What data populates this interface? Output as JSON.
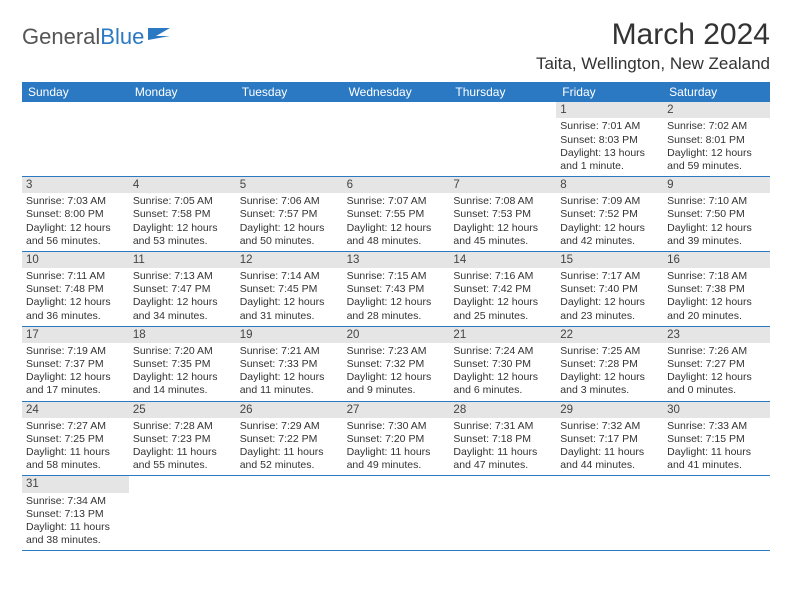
{
  "logo": {
    "part1": "General",
    "part2": "Blue"
  },
  "title": "March 2024",
  "location": "Taita, Wellington, New Zealand",
  "dayNames": [
    "Sunday",
    "Monday",
    "Tuesday",
    "Wednesday",
    "Thursday",
    "Friday",
    "Saturday"
  ],
  "colors": {
    "headerBg": "#2b79c2",
    "headerText": "#ffffff",
    "daynumBg": "#e5e5e5",
    "text": "#333333",
    "border": "#2b79c2"
  },
  "weeks": [
    [
      {
        "empty": true
      },
      {
        "empty": true
      },
      {
        "empty": true
      },
      {
        "empty": true
      },
      {
        "empty": true
      },
      {
        "day": "1",
        "sunrise": "Sunrise: 7:01 AM",
        "sunset": "Sunset: 8:03 PM",
        "daylight": "Daylight: 13 hours and 1 minute."
      },
      {
        "day": "2",
        "sunrise": "Sunrise: 7:02 AM",
        "sunset": "Sunset: 8:01 PM",
        "daylight": "Daylight: 12 hours and 59 minutes."
      }
    ],
    [
      {
        "day": "3",
        "sunrise": "Sunrise: 7:03 AM",
        "sunset": "Sunset: 8:00 PM",
        "daylight": "Daylight: 12 hours and 56 minutes."
      },
      {
        "day": "4",
        "sunrise": "Sunrise: 7:05 AM",
        "sunset": "Sunset: 7:58 PM",
        "daylight": "Daylight: 12 hours and 53 minutes."
      },
      {
        "day": "5",
        "sunrise": "Sunrise: 7:06 AM",
        "sunset": "Sunset: 7:57 PM",
        "daylight": "Daylight: 12 hours and 50 minutes."
      },
      {
        "day": "6",
        "sunrise": "Sunrise: 7:07 AM",
        "sunset": "Sunset: 7:55 PM",
        "daylight": "Daylight: 12 hours and 48 minutes."
      },
      {
        "day": "7",
        "sunrise": "Sunrise: 7:08 AM",
        "sunset": "Sunset: 7:53 PM",
        "daylight": "Daylight: 12 hours and 45 minutes."
      },
      {
        "day": "8",
        "sunrise": "Sunrise: 7:09 AM",
        "sunset": "Sunset: 7:52 PM",
        "daylight": "Daylight: 12 hours and 42 minutes."
      },
      {
        "day": "9",
        "sunrise": "Sunrise: 7:10 AM",
        "sunset": "Sunset: 7:50 PM",
        "daylight": "Daylight: 12 hours and 39 minutes."
      }
    ],
    [
      {
        "day": "10",
        "sunrise": "Sunrise: 7:11 AM",
        "sunset": "Sunset: 7:48 PM",
        "daylight": "Daylight: 12 hours and 36 minutes."
      },
      {
        "day": "11",
        "sunrise": "Sunrise: 7:13 AM",
        "sunset": "Sunset: 7:47 PM",
        "daylight": "Daylight: 12 hours and 34 minutes."
      },
      {
        "day": "12",
        "sunrise": "Sunrise: 7:14 AM",
        "sunset": "Sunset: 7:45 PM",
        "daylight": "Daylight: 12 hours and 31 minutes."
      },
      {
        "day": "13",
        "sunrise": "Sunrise: 7:15 AM",
        "sunset": "Sunset: 7:43 PM",
        "daylight": "Daylight: 12 hours and 28 minutes."
      },
      {
        "day": "14",
        "sunrise": "Sunrise: 7:16 AM",
        "sunset": "Sunset: 7:42 PM",
        "daylight": "Daylight: 12 hours and 25 minutes."
      },
      {
        "day": "15",
        "sunrise": "Sunrise: 7:17 AM",
        "sunset": "Sunset: 7:40 PM",
        "daylight": "Daylight: 12 hours and 23 minutes."
      },
      {
        "day": "16",
        "sunrise": "Sunrise: 7:18 AM",
        "sunset": "Sunset: 7:38 PM",
        "daylight": "Daylight: 12 hours and 20 minutes."
      }
    ],
    [
      {
        "day": "17",
        "sunrise": "Sunrise: 7:19 AM",
        "sunset": "Sunset: 7:37 PM",
        "daylight": "Daylight: 12 hours and 17 minutes."
      },
      {
        "day": "18",
        "sunrise": "Sunrise: 7:20 AM",
        "sunset": "Sunset: 7:35 PM",
        "daylight": "Daylight: 12 hours and 14 minutes."
      },
      {
        "day": "19",
        "sunrise": "Sunrise: 7:21 AM",
        "sunset": "Sunset: 7:33 PM",
        "daylight": "Daylight: 12 hours and 11 minutes."
      },
      {
        "day": "20",
        "sunrise": "Sunrise: 7:23 AM",
        "sunset": "Sunset: 7:32 PM",
        "daylight": "Daylight: 12 hours and 9 minutes."
      },
      {
        "day": "21",
        "sunrise": "Sunrise: 7:24 AM",
        "sunset": "Sunset: 7:30 PM",
        "daylight": "Daylight: 12 hours and 6 minutes."
      },
      {
        "day": "22",
        "sunrise": "Sunrise: 7:25 AM",
        "sunset": "Sunset: 7:28 PM",
        "daylight": "Daylight: 12 hours and 3 minutes."
      },
      {
        "day": "23",
        "sunrise": "Sunrise: 7:26 AM",
        "sunset": "Sunset: 7:27 PM",
        "daylight": "Daylight: 12 hours and 0 minutes."
      }
    ],
    [
      {
        "day": "24",
        "sunrise": "Sunrise: 7:27 AM",
        "sunset": "Sunset: 7:25 PM",
        "daylight": "Daylight: 11 hours and 58 minutes."
      },
      {
        "day": "25",
        "sunrise": "Sunrise: 7:28 AM",
        "sunset": "Sunset: 7:23 PM",
        "daylight": "Daylight: 11 hours and 55 minutes."
      },
      {
        "day": "26",
        "sunrise": "Sunrise: 7:29 AM",
        "sunset": "Sunset: 7:22 PM",
        "daylight": "Daylight: 11 hours and 52 minutes."
      },
      {
        "day": "27",
        "sunrise": "Sunrise: 7:30 AM",
        "sunset": "Sunset: 7:20 PM",
        "daylight": "Daylight: 11 hours and 49 minutes."
      },
      {
        "day": "28",
        "sunrise": "Sunrise: 7:31 AM",
        "sunset": "Sunset: 7:18 PM",
        "daylight": "Daylight: 11 hours and 47 minutes."
      },
      {
        "day": "29",
        "sunrise": "Sunrise: 7:32 AM",
        "sunset": "Sunset: 7:17 PM",
        "daylight": "Daylight: 11 hours and 44 minutes."
      },
      {
        "day": "30",
        "sunrise": "Sunrise: 7:33 AM",
        "sunset": "Sunset: 7:15 PM",
        "daylight": "Daylight: 11 hours and 41 minutes."
      }
    ],
    [
      {
        "day": "31",
        "sunrise": "Sunrise: 7:34 AM",
        "sunset": "Sunset: 7:13 PM",
        "daylight": "Daylight: 11 hours and 38 minutes."
      },
      {
        "empty": true
      },
      {
        "empty": true
      },
      {
        "empty": true
      },
      {
        "empty": true
      },
      {
        "empty": true
      },
      {
        "empty": true
      }
    ]
  ]
}
